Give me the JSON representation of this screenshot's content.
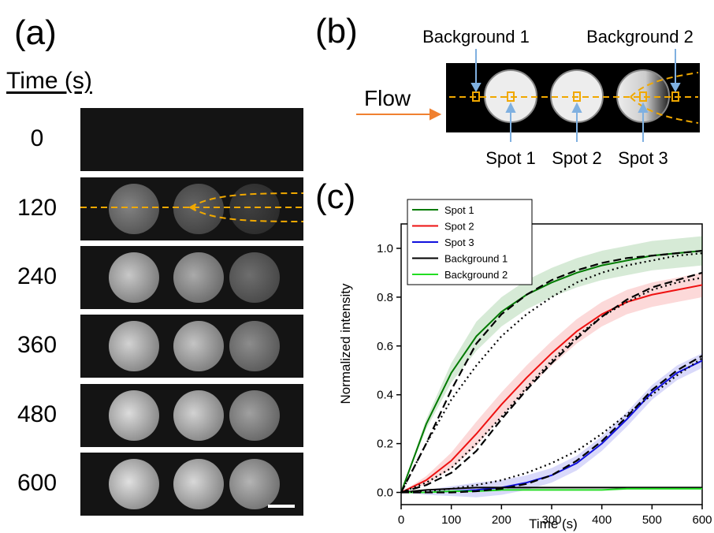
{
  "panel_a": {
    "label": "(a)",
    "time_header": "Time (s)",
    "frames": [
      {
        "time": "0",
        "spots": [
          0,
          0,
          0
        ]
      },
      {
        "time": "120",
        "spots": [
          0.45,
          0.3,
          0.12
        ]
      },
      {
        "time": "240",
        "spots": [
          0.8,
          0.65,
          0.35
        ]
      },
      {
        "time": "360",
        "spots": [
          0.85,
          0.78,
          0.5
        ]
      },
      {
        "time": "480",
        "spots": [
          0.9,
          0.85,
          0.6
        ]
      },
      {
        "time": "600",
        "spots": [
          0.92,
          0.88,
          0.7
        ]
      }
    ]
  },
  "panel_b": {
    "label": "(b)",
    "flow_label": "Flow",
    "background_labels": [
      "Background 1",
      "Background 2"
    ],
    "spot_labels": [
      "Spot 1",
      "Spot 2",
      "Spot 3"
    ]
  },
  "panel_c": {
    "label": "(c)"
  },
  "colors": {
    "spot1": "#007a00",
    "spot2": "#ee1111",
    "spot3": "#1111dd",
    "background1": "#000000",
    "background2": "#22dd22",
    "flow_arrow": "#f08030",
    "dashed_line": "#f0a800",
    "pointer": "#7fb0e0"
  },
  "chart_data": {
    "type": "line",
    "xlabel": "Time (s)",
    "ylabel": "Normalized intensity",
    "xlim": [
      0,
      600
    ],
    "ylim": [
      -0.05,
      1.1
    ],
    "xticks": [
      "0",
      "100",
      "200",
      "300",
      "400",
      "500",
      "600"
    ],
    "yticks": [
      "0.0",
      "0.2",
      "0.4",
      "0.6",
      "0.8",
      "1.0"
    ],
    "legend_position": "top-left",
    "series": [
      {
        "name": "Spot 1",
        "color": "#007a00",
        "x": [
          0,
          50,
          100,
          150,
          200,
          250,
          300,
          350,
          400,
          450,
          500,
          550,
          600
        ],
        "values": [
          0.0,
          0.28,
          0.49,
          0.64,
          0.74,
          0.81,
          0.86,
          0.9,
          0.93,
          0.95,
          0.97,
          0.98,
          0.99
        ],
        "band": 0.06
      },
      {
        "name": "Spot 2",
        "color": "#ee1111",
        "x": [
          0,
          50,
          100,
          150,
          200,
          250,
          300,
          350,
          400,
          450,
          500,
          550,
          600
        ],
        "values": [
          0.0,
          0.05,
          0.13,
          0.24,
          0.36,
          0.47,
          0.57,
          0.66,
          0.73,
          0.78,
          0.81,
          0.83,
          0.85
        ],
        "band": 0.05
      },
      {
        "name": "Spot 3",
        "color": "#1111dd",
        "x": [
          0,
          50,
          100,
          150,
          200,
          250,
          300,
          350,
          400,
          450,
          500,
          550,
          600
        ],
        "values": [
          0.0,
          0.0,
          0.005,
          0.01,
          0.02,
          0.04,
          0.07,
          0.12,
          0.2,
          0.3,
          0.41,
          0.49,
          0.54
        ],
        "band": 0.03
      },
      {
        "name": "Background 1",
        "color": "#000000",
        "x": [
          0,
          50,
          100,
          150,
          200,
          250,
          300,
          350,
          400,
          450,
          500,
          550,
          600
        ],
        "values": [
          0.0,
          0.01,
          0.015,
          0.02,
          0.02,
          0.02,
          0.02,
          0.02,
          0.02,
          0.02,
          0.02,
          0.02,
          0.02
        ],
        "band": 0
      },
      {
        "name": "Background 2",
        "color": "#22dd22",
        "x": [
          0,
          50,
          100,
          150,
          200,
          250,
          300,
          350,
          400,
          450,
          500,
          550,
          600
        ],
        "values": [
          0.0,
          0.0,
          0.005,
          0.005,
          0.01,
          0.01,
          0.01,
          0.01,
          0.01,
          0.015,
          0.015,
          0.015,
          0.015
        ],
        "band": 0
      }
    ],
    "fits": [
      {
        "style": "dash",
        "color": "#000000",
        "x": [
          0,
          50,
          100,
          150,
          200,
          250,
          300,
          350,
          400,
          450,
          500,
          550,
          600
        ],
        "values": [
          0.0,
          0.2,
          0.42,
          0.61,
          0.73,
          0.81,
          0.87,
          0.91,
          0.94,
          0.96,
          0.97,
          0.98,
          0.99
        ]
      },
      {
        "style": "dot",
        "color": "#000000",
        "x": [
          0,
          50,
          100,
          150,
          200,
          250,
          300,
          350,
          400,
          450,
          500,
          550,
          600
        ],
        "values": [
          0.0,
          0.2,
          0.38,
          0.52,
          0.64,
          0.73,
          0.8,
          0.86,
          0.9,
          0.93,
          0.95,
          0.97,
          0.98
        ]
      },
      {
        "style": "dash",
        "color": "#000000",
        "x": [
          0,
          50,
          100,
          150,
          200,
          250,
          300,
          350,
          400,
          450,
          500,
          550,
          600
        ],
        "values": [
          0.0,
          0.03,
          0.08,
          0.17,
          0.3,
          0.42,
          0.53,
          0.63,
          0.72,
          0.79,
          0.84,
          0.87,
          0.9
        ]
      },
      {
        "style": "dot",
        "color": "#000000",
        "x": [
          0,
          50,
          100,
          150,
          200,
          250,
          300,
          350,
          400,
          450,
          500,
          550,
          600
        ],
        "values": [
          0.0,
          0.04,
          0.1,
          0.2,
          0.31,
          0.43,
          0.54,
          0.64,
          0.72,
          0.78,
          0.83,
          0.86,
          0.88
        ]
      },
      {
        "style": "dash",
        "color": "#000000",
        "x": [
          0,
          50,
          100,
          150,
          200,
          250,
          300,
          350,
          400,
          450,
          500,
          550,
          600
        ],
        "values": [
          0.0,
          0.0,
          0.0,
          0.005,
          0.015,
          0.035,
          0.07,
          0.13,
          0.21,
          0.31,
          0.42,
          0.5,
          0.56
        ]
      },
      {
        "style": "dot",
        "color": "#000000",
        "x": [
          0,
          50,
          100,
          150,
          200,
          250,
          300,
          350,
          400,
          450,
          500,
          550,
          600
        ],
        "values": [
          0.0,
          0.005,
          0.015,
          0.03,
          0.05,
          0.08,
          0.12,
          0.17,
          0.24,
          0.32,
          0.4,
          0.48,
          0.55
        ]
      }
    ]
  }
}
